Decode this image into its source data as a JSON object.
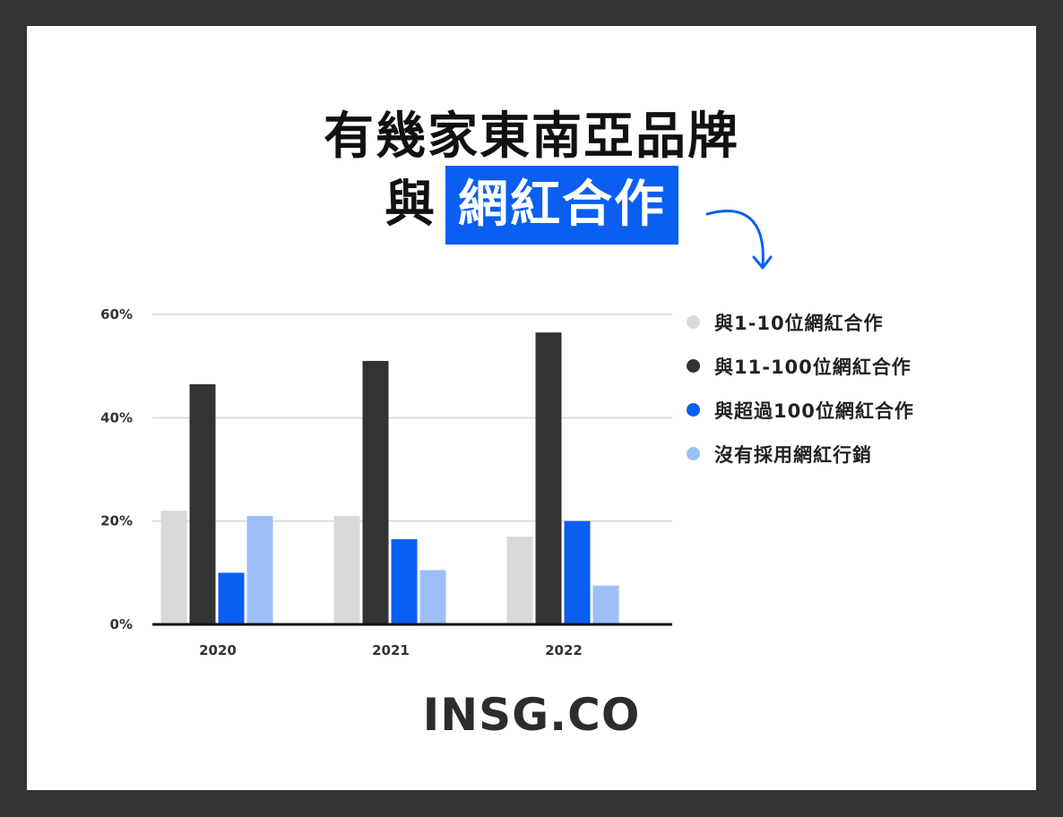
{
  "title": {
    "line1": "有幾家東南亞品牌",
    "line2_plain": "與",
    "line2_highlight": "網紅合作"
  },
  "colors": {
    "background": "#333333",
    "card": "#ffffff",
    "highlight": "#0a5ff2",
    "arrow": "#0a5ff2"
  },
  "icons": {
    "arrow": "curved-arrow-icon"
  },
  "chart_data": {
    "type": "bar",
    "categories": [
      "2020",
      "2021",
      "2022"
    ],
    "series": [
      {
        "name": "與1-10位網紅合作",
        "color": "#d9d9d9",
        "values": [
          22,
          21,
          17
        ]
      },
      {
        "name": "與11-100位網紅合作",
        "color": "#333333",
        "values": [
          46.5,
          51,
          56.5
        ]
      },
      {
        "name": "與超過100位網紅合作",
        "color": "#0a5ff2",
        "values": [
          10,
          16.5,
          20
        ]
      },
      {
        "name": "沒有採用網紅行銷",
        "color": "#9cbff8",
        "values": [
          21,
          10.5,
          7.5
        ]
      }
    ],
    "y_ticks": [
      "0%",
      "20%",
      "40%",
      "60%"
    ],
    "y_tick_values": [
      0,
      20,
      40,
      60
    ],
    "ylim": [
      0,
      60
    ],
    "grid": true,
    "legend_position": "right"
  },
  "logo": "INSG.CO"
}
